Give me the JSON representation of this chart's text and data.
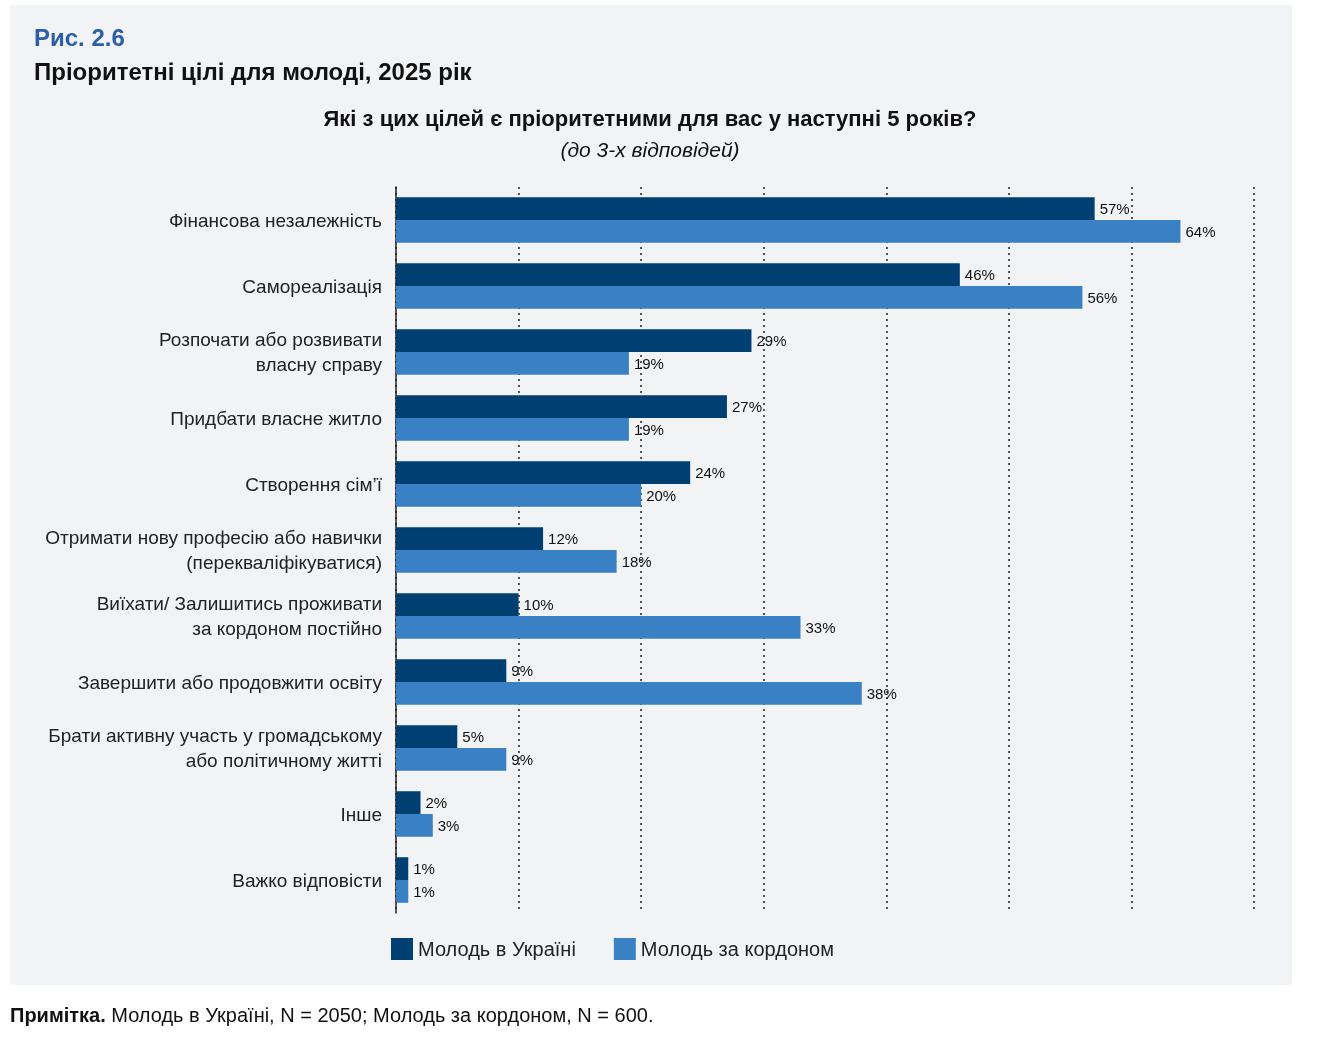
{
  "chart_data": {
    "type": "bar",
    "orientation": "horizontal",
    "title": "Рис. 2.6",
    "subtitle": "Пріоритетні цілі для молоді, 2025 рік",
    "annotations": [
      "Які з цих цілей є пріоритетними для вас у наступні 5 років?",
      "(до 3-х відповідей)",
      "Примітка. Молодь в Україні, N = 2050; Молодь за кордоном, N = 600."
    ],
    "categories": [
      "Фінансова незалежність",
      "Самореалізація",
      "Розпочати або розвивати\nвласну справу",
      "Придбати власне житло",
      "Створення сім’ї",
      "Отримати нову професію або навички\n(перекваліфікуватися)",
      "Виїхати/ Залишитись проживати\nза кордоном постійно",
      "Завершити або продовжити освіту",
      "Брати активну участь у громадському\nабо політичному житті",
      "Інше",
      "Важко відповісти"
    ],
    "series": [
      {
        "name": "Молодь в Україні",
        "color": "#003f72",
        "values": [
          57,
          46,
          29,
          27,
          24,
          12,
          10,
          9,
          5,
          2,
          1
        ],
        "value_labels": [
          "57%",
          "46%",
          "29%",
          "27%",
          "24%",
          "12%",
          "10%",
          "9%",
          "5%",
          "2%",
          "1%"
        ]
      },
      {
        "name": "Молодь за кордоном",
        "color": "#3a80c4",
        "values": [
          64,
          56,
          19,
          19,
          20,
          18,
          33,
          38,
          9,
          3,
          1
        ],
        "value_labels": [
          "64%",
          "56%",
          "19%",
          "19%",
          "20%",
          "18%",
          "33%",
          "38%",
          "9%",
          "3%",
          "1%"
        ]
      }
    ],
    "xlim": [
      0,
      70
    ],
    "xticks": [
      {
        "value": 0,
        "label": null
      },
      {
        "value": 10,
        "label": null
      },
      {
        "value": 20,
        "label": null
      },
      {
        "value": 30,
        "label": null
      },
      {
        "value": 40,
        "label": null
      },
      {
        "value": 50,
        "label": null
      },
      {
        "value": 60,
        "label": null
      },
      {
        "value": 70,
        "label": null
      }
    ],
    "grid": "x",
    "legend": "bottom"
  }
}
